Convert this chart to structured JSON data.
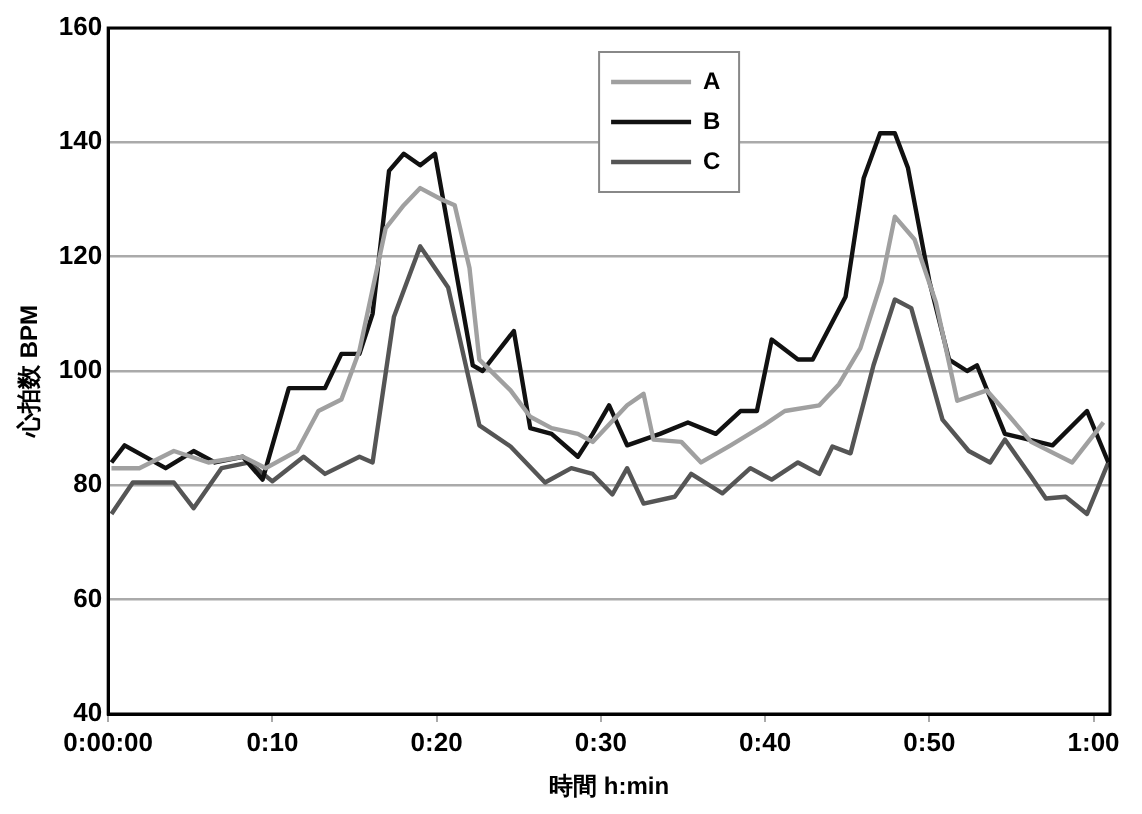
{
  "chart_data": {
    "type": "line",
    "xlabel": "時間 h:min",
    "ylabel": "心拍数 BPM",
    "xlim": [
      0,
      61
    ],
    "xticks": [
      {
        "value": 0,
        "label": "0:00:00"
      },
      {
        "value": 10,
        "label": "0:10"
      },
      {
        "value": 20,
        "label": "0:20"
      },
      {
        "value": 30,
        "label": "0:30"
      },
      {
        "value": 40,
        "label": "0:40"
      },
      {
        "value": 50,
        "label": "0:50"
      },
      {
        "value": 60,
        "label": "1:00"
      }
    ],
    "ylim": [
      40,
      160
    ],
    "yticks": [
      40,
      60,
      80,
      100,
      120,
      140,
      160
    ],
    "grid": "y",
    "legend": "top",
    "marker": "none",
    "line_style": "solid",
    "series": [
      {
        "name": "A",
        "color": "#a0a0a0",
        "x": [
          0.2,
          1.9,
          4.0,
          6.1,
          8.2,
          9.6,
          11.5,
          12.8,
          14.2,
          15.3,
          16.9,
          18.0,
          19.0,
          20.3,
          21.1,
          22.0,
          22.6,
          24.5,
          25.7,
          27.0,
          28.6,
          29.5,
          31.6,
          32.6,
          33.2,
          34.9,
          36.1,
          37.9,
          39.9,
          41.2,
          43.3,
          44.5,
          45.8,
          47.1,
          47.9,
          49.1,
          50.4,
          51.7,
          53.5,
          54.6,
          56.2,
          58.7,
          60.6
        ],
        "values": [
          83,
          83,
          86,
          84,
          85,
          83,
          86,
          93,
          95,
          103.6,
          125,
          129,
          132,
          130,
          129,
          118,
          102,
          96.6,
          92,
          90,
          89,
          87.6,
          94,
          96,
          88,
          87.6,
          84,
          87,
          90.5,
          93,
          94,
          97.7,
          104,
          115.7,
          127,
          123,
          112,
          94.8,
          96.6,
          93,
          87.6,
          84,
          91
        ]
      },
      {
        "name": "B",
        "color": "#111111",
        "x": [
          0.2,
          1.0,
          3.5,
          5.2,
          6.5,
          8.2,
          9.4,
          11.0,
          13.2,
          14.2,
          15.3,
          16.1,
          17.1,
          18.0,
          19.0,
          19.9,
          22.2,
          22.8,
          24.7,
          25.7,
          27.0,
          28.6,
          29.5,
          30.5,
          31.6,
          33.6,
          35.3,
          37.0,
          38.5,
          39.5,
          40.4,
          42.0,
          42.9,
          44.9,
          46.0,
          47.0,
          47.9,
          48.7,
          50.0,
          51.2,
          52.3,
          52.9,
          54.6,
          57.5,
          59.6,
          60.9
        ],
        "values": [
          84,
          87,
          83,
          86,
          84,
          85,
          81,
          97,
          97,
          103,
          103,
          110,
          135,
          138,
          136,
          138,
          101,
          100,
          107,
          90,
          89,
          85,
          89,
          94,
          87,
          89,
          91,
          89,
          93,
          93,
          105.5,
          102,
          102,
          113,
          133.7,
          141.6,
          141.6,
          135.5,
          115.7,
          102,
          100,
          101,
          89,
          87,
          93,
          84
        ]
      },
      {
        "name": "C",
        "color": "#555555",
        "x": [
          0.2,
          1.5,
          4.0,
          5.2,
          6.9,
          8.6,
          10.0,
          11.9,
          13.2,
          15.3,
          16.1,
          17.4,
          19.0,
          20.7,
          22.6,
          24.5,
          26.6,
          28.2,
          29.5,
          30.7,
          31.6,
          32.6,
          34.5,
          35.5,
          37.4,
          39.1,
          40.4,
          42.0,
          43.3,
          44.1,
          45.2,
          46.6,
          47.9,
          48.9,
          50.8,
          52.4,
          53.7,
          54.6,
          56.2,
          57.1,
          58.3,
          59.6,
          60.9
        ],
        "values": [
          75,
          80.5,
          80.5,
          76,
          83,
          84,
          80.7,
          85,
          82,
          85,
          84,
          109.5,
          121.8,
          114.6,
          90.5,
          86.8,
          80.5,
          83,
          82,
          78.4,
          83,
          76.8,
          78,
          82,
          78.6,
          83,
          81,
          84,
          82,
          86.8,
          85.6,
          101,
          112.5,
          111,
          91.5,
          86,
          84,
          88,
          81.5,
          77.7,
          78,
          75,
          84
        ]
      }
    ]
  }
}
